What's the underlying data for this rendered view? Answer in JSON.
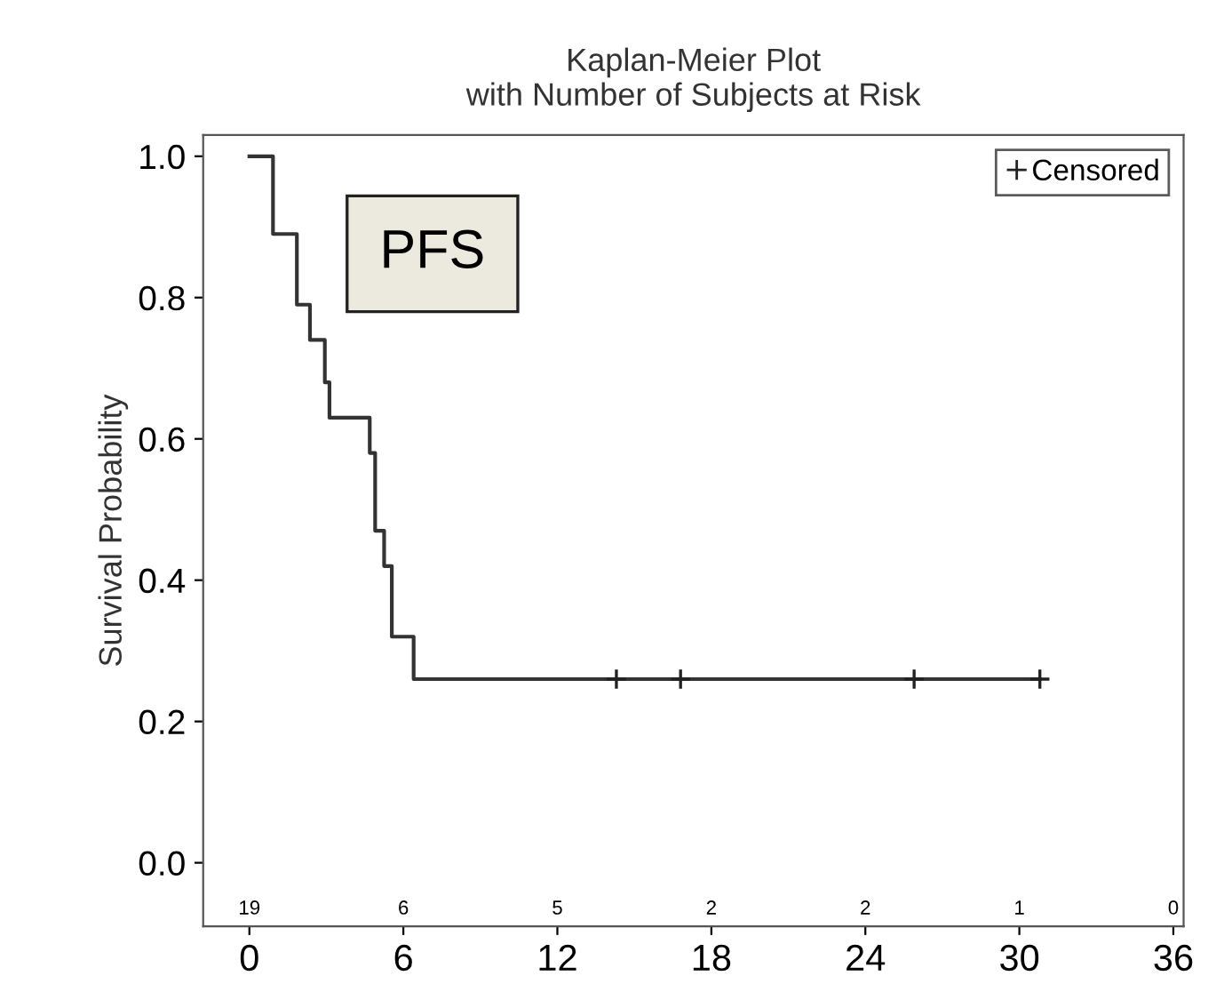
{
  "chart_data": {
    "type": "step",
    "title": "Kaplan-Meier Plot\nwith Number of Subjects at Risk",
    "ylabel": "Survival Probability",
    "series": [
      {
        "color": "#333333",
        "x": [
          0,
          0.92,
          1.85,
          2.36,
          2.94,
          3.12,
          4.69,
          4.9,
          5.25,
          5.55,
          6.4,
          30.8
        ],
        "values": [
          1,
          0.89,
          0.79,
          0.74,
          0.68,
          0.63,
          0.58,
          0.47,
          0.42,
          0.32,
          0.26,
          0.26
        ]
      },
      {
        "type": "scatter",
        "name": "Censored",
        "color": "#222222",
        "marker": "cross",
        "x": [
          14.3,
          16.8,
          25.9,
          30.8
        ],
        "values": [
          0.26,
          0.26,
          0.26,
          0.26
        ]
      }
    ],
    "xlim": [
      -1.8,
      36.4
    ],
    "xticks": [
      0,
      6,
      12,
      18,
      24,
      30,
      36
    ],
    "ylim": [
      -0.09,
      1.03
    ],
    "yticks": [
      {
        "value": 0,
        "label": "0.0"
      },
      0.2,
      0.4,
      0.6,
      0.8,
      {
        "value": 1,
        "label": "1.0"
      }
    ],
    "grid": false,
    "legend": "top right",
    "annotations": [
      "PFS",
      "19",
      "6",
      "5",
      "2",
      "2",
      "1",
      "0"
    ]
  }
}
